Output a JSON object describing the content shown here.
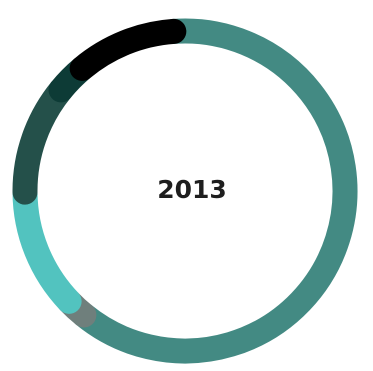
{
  "chart_data": {
    "type": "pie",
    "style": "donut",
    "center_label": "2013",
    "start_angle_deg": -4,
    "direction": "clockwise",
    "slices": [
      {
        "value": 62,
        "color": "#438a83"
      },
      {
        "value": 2,
        "color": "#6f7f7c"
      },
      {
        "value": 12,
        "color": "#52c3bf"
      },
      {
        "value": 11,
        "color": "#24504a"
      },
      {
        "value": 3,
        "color": "#0d3b36"
      },
      {
        "value": 10,
        "color": "#000000"
      }
    ],
    "legend": "none",
    "grid": false
  }
}
